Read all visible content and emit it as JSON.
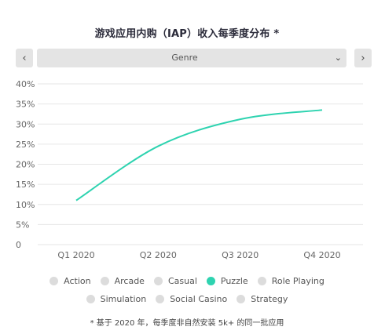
{
  "title": "游戏应用内购（IAP）收入每季度分布 *",
  "nav": {
    "prev_icon": "‹",
    "next_icon": "›"
  },
  "select": {
    "value": "Genre",
    "chevron_icon": "⌄"
  },
  "colors": {
    "accent": "#2ed3b0",
    "grid": "#e6e6e6",
    "inactive": "#dcdcdc",
    "axis_text": "#666666"
  },
  "chart_data": {
    "type": "line",
    "categories": [
      "Q1 2020",
      "Q2 2020",
      "Q3 2020",
      "Q4 2020"
    ],
    "series": [
      {
        "name": "Puzzle",
        "values": [
          11,
          24.5,
          31.2,
          33.5
        ]
      }
    ],
    "ylim": [
      0,
      40
    ],
    "yticks": [
      0,
      5,
      10,
      15,
      20,
      25,
      30,
      35,
      40
    ],
    "ytick_labels": [
      "0",
      "5%",
      "10%",
      "15%",
      "20%",
      "25%",
      "30%",
      "35%",
      "40%"
    ],
    "grid": true,
    "legend_position": "bottom"
  },
  "legend": [
    {
      "label": "Action",
      "active": false
    },
    {
      "label": "Arcade",
      "active": false
    },
    {
      "label": "Casual",
      "active": false
    },
    {
      "label": "Puzzle",
      "active": true
    },
    {
      "label": "Role Playing",
      "active": false
    },
    {
      "label": "Simulation",
      "active": false
    },
    {
      "label": "Social Casino",
      "active": false
    },
    {
      "label": "Strategy",
      "active": false
    }
  ],
  "footnote": "* 基于 2020 年，每季度非自然安装 5k+ 的同一批应用"
}
